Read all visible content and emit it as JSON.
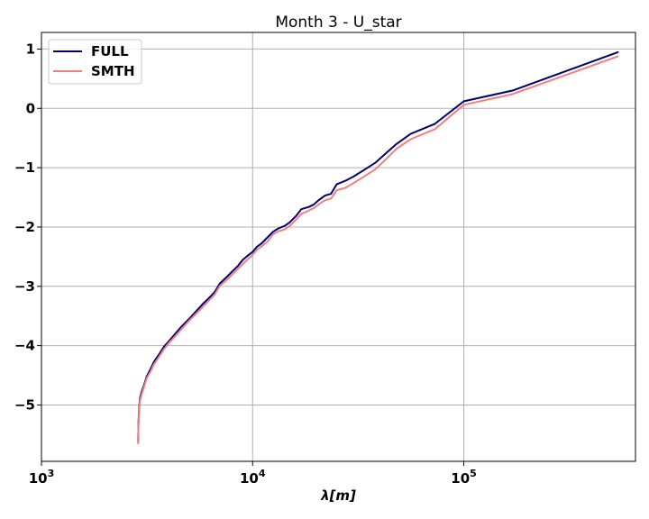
{
  "chart_data": {
    "type": "line",
    "title": "Month 3 - U_star",
    "xlabel": "λ[m]",
    "ylabel": "",
    "xscale": "log",
    "xlim": [
      1000,
      650000
    ],
    "ylim": [
      -5.95,
      1.28
    ],
    "grid": true,
    "legend_position": "top-left",
    "x_ticks": [
      {
        "value": 1000,
        "base": "10",
        "exp": "3"
      },
      {
        "value": 10000,
        "base": "10",
        "exp": "4"
      },
      {
        "value": 100000,
        "base": "10",
        "exp": "5"
      }
    ],
    "y_ticks": [
      {
        "value": 1,
        "label": "1"
      },
      {
        "value": 0,
        "label": "0"
      },
      {
        "value": -1,
        "label": "−1"
      },
      {
        "value": -2,
        "label": "−2"
      },
      {
        "value": -3,
        "label": "−3"
      },
      {
        "value": -4,
        "label": "−4"
      },
      {
        "value": -5,
        "label": "−5"
      }
    ],
    "series": [
      {
        "name": "FULL",
        "color": "#000066",
        "points": [
          [
            2870,
            -5.62
          ],
          [
            2880,
            -5.3
          ],
          [
            2900,
            -5.05
          ],
          [
            2930,
            -4.88
          ],
          [
            2980,
            -4.78
          ],
          [
            3050,
            -4.68
          ],
          [
            3150,
            -4.52
          ],
          [
            3300,
            -4.38
          ],
          [
            3400,
            -4.28
          ],
          [
            3600,
            -4.15
          ],
          [
            3800,
            -4.02
          ],
          [
            4000,
            -3.93
          ],
          [
            4300,
            -3.8
          ],
          [
            4600,
            -3.68
          ],
          [
            5000,
            -3.55
          ],
          [
            5400,
            -3.42
          ],
          [
            5800,
            -3.3
          ],
          [
            6200,
            -3.2
          ],
          [
            6600,
            -3.1
          ],
          [
            7000,
            -2.95
          ],
          [
            7500,
            -2.85
          ],
          [
            8000,
            -2.75
          ],
          [
            8500,
            -2.66
          ],
          [
            9000,
            -2.55
          ],
          [
            9500,
            -2.48
          ],
          [
            10000,
            -2.42
          ],
          [
            10500,
            -2.33
          ],
          [
            11000,
            -2.28
          ],
          [
            11800,
            -2.17
          ],
          [
            12500,
            -2.08
          ],
          [
            13300,
            -2.02
          ],
          [
            14200,
            -1.98
          ],
          [
            15000,
            -1.92
          ],
          [
            16000,
            -1.82
          ],
          [
            17000,
            -1.7
          ],
          [
            18500,
            -1.66
          ],
          [
            19500,
            -1.62
          ],
          [
            20500,
            -1.55
          ],
          [
            22000,
            -1.47
          ],
          [
            23500,
            -1.44
          ],
          [
            25000,
            -1.28
          ],
          [
            27500,
            -1.22
          ],
          [
            30000,
            -1.15
          ],
          [
            34000,
            -1.03
          ],
          [
            38000,
            -0.92
          ],
          [
            43000,
            -0.75
          ],
          [
            48000,
            -0.6
          ],
          [
            56000,
            -0.43
          ],
          [
            73000,
            -0.26
          ],
          [
            100000,
            0.12
          ],
          [
            170000,
            0.3
          ],
          [
            540000,
            0.95
          ]
        ]
      },
      {
        "name": "SMTH",
        "color": "#f08080",
        "points": [
          [
            2870,
            -5.66
          ],
          [
            2880,
            -5.35
          ],
          [
            2900,
            -5.1
          ],
          [
            2930,
            -4.92
          ],
          [
            2980,
            -4.82
          ],
          [
            3050,
            -4.71
          ],
          [
            3150,
            -4.55
          ],
          [
            3300,
            -4.42
          ],
          [
            3400,
            -4.32
          ],
          [
            3600,
            -4.19
          ],
          [
            3800,
            -4.06
          ],
          [
            4000,
            -3.96
          ],
          [
            4300,
            -3.84
          ],
          [
            4600,
            -3.72
          ],
          [
            5000,
            -3.58
          ],
          [
            5400,
            -3.46
          ],
          [
            5800,
            -3.35
          ],
          [
            6200,
            -3.24
          ],
          [
            6600,
            -3.14
          ],
          [
            7000,
            -2.99
          ],
          [
            7500,
            -2.9
          ],
          [
            8000,
            -2.8
          ],
          [
            8500,
            -2.71
          ],
          [
            9000,
            -2.62
          ],
          [
            9500,
            -2.54
          ],
          [
            10000,
            -2.47
          ],
          [
            10500,
            -2.38
          ],
          [
            11000,
            -2.33
          ],
          [
            11800,
            -2.24
          ],
          [
            12500,
            -2.12
          ],
          [
            13300,
            -2.07
          ],
          [
            14200,
            -2.04
          ],
          [
            15000,
            -1.98
          ],
          [
            16000,
            -1.88
          ],
          [
            17000,
            -1.78
          ],
          [
            18500,
            -1.72
          ],
          [
            19500,
            -1.68
          ],
          [
            20500,
            -1.62
          ],
          [
            22000,
            -1.55
          ],
          [
            23500,
            -1.52
          ],
          [
            25000,
            -1.38
          ],
          [
            27500,
            -1.34
          ],
          [
            30000,
            -1.26
          ],
          [
            34000,
            -1.14
          ],
          [
            38000,
            -1.03
          ],
          [
            43000,
            -0.85
          ],
          [
            48000,
            -0.68
          ],
          [
            56000,
            -0.52
          ],
          [
            73000,
            -0.35
          ],
          [
            100000,
            0.06
          ],
          [
            170000,
            0.24
          ],
          [
            540000,
            0.88
          ]
        ]
      }
    ]
  }
}
